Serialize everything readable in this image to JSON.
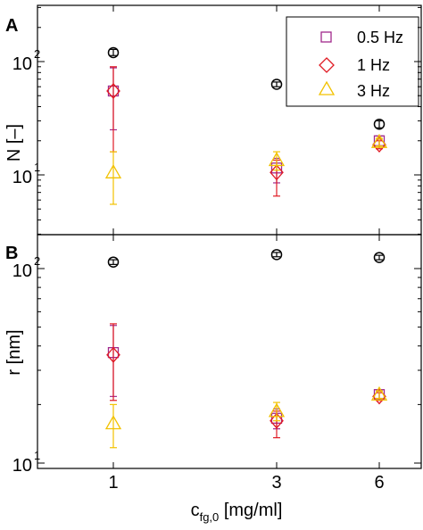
{
  "chart_data": [
    {
      "panel": "A",
      "type": "scatter",
      "ylabel": "N [–]",
      "yscale": "log",
      "ylim": [
        3,
        300
      ],
      "yticks": [
        {
          "value": 10,
          "label": "10^1"
        },
        {
          "value": 100,
          "label": "10^2"
        }
      ],
      "x_categories": [
        "1",
        "3",
        "6"
      ],
      "legend": {
        "position": "top-right",
        "entries": [
          "0.5 Hz",
          "1 Hz",
          "3 Hz"
        ]
      },
      "series": [
        {
          "name": "",
          "marker": "circle",
          "color": "#000000",
          "points": [
            {
              "x": "1",
              "y": 120,
              "lo": 113,
              "hi": 128
            },
            {
              "x": "3",
              "y": 63,
              "lo": 60,
              "hi": 66
            },
            {
              "x": "6",
              "y": 28,
              "lo": 26,
              "hi": 30
            }
          ]
        },
        {
          "name": "0.5 Hz",
          "marker": "square",
          "color": "#a0288c",
          "points": [
            {
              "x": "1",
              "y": 55,
              "lo": 25,
              "hi": 88
            },
            {
              "x": "3",
              "y": 11.5,
              "lo": 8.5,
              "hi": 14
            },
            {
              "x": "6",
              "y": 20,
              "lo": 18,
              "hi": 22
            }
          ]
        },
        {
          "name": "1 Hz",
          "marker": "diamond",
          "color": "#e01b24",
          "points": [
            {
              "x": "1",
              "y": 55,
              "lo": 16,
              "hi": 90
            },
            {
              "x": "3",
              "y": 10.5,
              "lo": 6.5,
              "hi": 13.5
            },
            {
              "x": "6",
              "y": 18.5,
              "lo": 17,
              "hi": 20
            }
          ]
        },
        {
          "name": "3 Hz",
          "marker": "triangle",
          "color": "#f2c200",
          "points": [
            {
              "x": "1",
              "y": 10.5,
              "lo": 5.5,
              "hi": 16
            },
            {
              "x": "3",
              "y": 13.5,
              "lo": 11,
              "hi": 16
            },
            {
              "x": "6",
              "y": 19.5,
              "lo": 18,
              "hi": 21
            }
          ]
        }
      ]
    },
    {
      "panel": "B",
      "type": "scatter",
      "ylabel": "r [nm]",
      "xlabel_main": "c",
      "xlabel_sub": "fg,0",
      "xlabel_rest": " [mg/ml]",
      "yscale": "log",
      "ylim": [
        10,
        160
      ],
      "yticks": [
        {
          "value": 10,
          "label": "10^1"
        },
        {
          "value": 100,
          "label": "10^2"
        }
      ],
      "x_categories": [
        "1",
        "3",
        "6"
      ],
      "series": [
        {
          "name": "",
          "marker": "circle",
          "color": "#000000",
          "points": [
            {
              "x": "1",
              "y": 108,
              "lo": 105,
              "hi": 111
            },
            {
              "x": "3",
              "y": 118,
              "lo": 115,
              "hi": 121
            },
            {
              "x": "6",
              "y": 114,
              "lo": 111,
              "hi": 117
            }
          ]
        },
        {
          "name": "0.5 Hz",
          "marker": "square",
          "color": "#a0288c",
          "points": [
            {
              "x": "1",
              "y": 37,
              "lo": 22,
              "hi": 51
            },
            {
              "x": "3",
              "y": 17,
              "lo": 15,
              "hi": 19
            },
            {
              "x": "6",
              "y": 22.5,
              "lo": 21.5,
              "hi": 23.5
            }
          ]
        },
        {
          "name": "1 Hz",
          "marker": "diamond",
          "color": "#e01b24",
          "points": [
            {
              "x": "1",
              "y": 36,
              "lo": 21,
              "hi": 52
            },
            {
              "x": "3",
              "y": 16.5,
              "lo": 13.5,
              "hi": 18.5
            },
            {
              "x": "6",
              "y": 22,
              "lo": 21,
              "hi": 23
            }
          ]
        },
        {
          "name": "3 Hz",
          "marker": "triangle",
          "color": "#f2c200",
          "points": [
            {
              "x": "1",
              "y": 16,
              "lo": 12,
              "hi": 20
            },
            {
              "x": "3",
              "y": 18.5,
              "lo": 16.5,
              "hi": 20.5
            },
            {
              "x": "6",
              "y": 22.5,
              "lo": 21.5,
              "hi": 23.5
            }
          ]
        }
      ]
    }
  ],
  "legend_labels": {
    "s05": "0.5 Hz",
    "s1": "1 Hz",
    "s3": "3 Hz"
  },
  "panel_a_letter": "A",
  "panel_b_letter": "B",
  "x_tick_labels": {
    "t1": "1",
    "t3": "3",
    "t6": "6"
  },
  "y_tick_base": "10",
  "y_tick_exp_1": "1",
  "y_tick_exp_2": "2",
  "ylabel_a": "N [–]",
  "ylabel_b": "r [nm]",
  "xlabel": {
    "main": "c",
    "sub": "fg,0",
    "rest": " [mg/ml]"
  }
}
